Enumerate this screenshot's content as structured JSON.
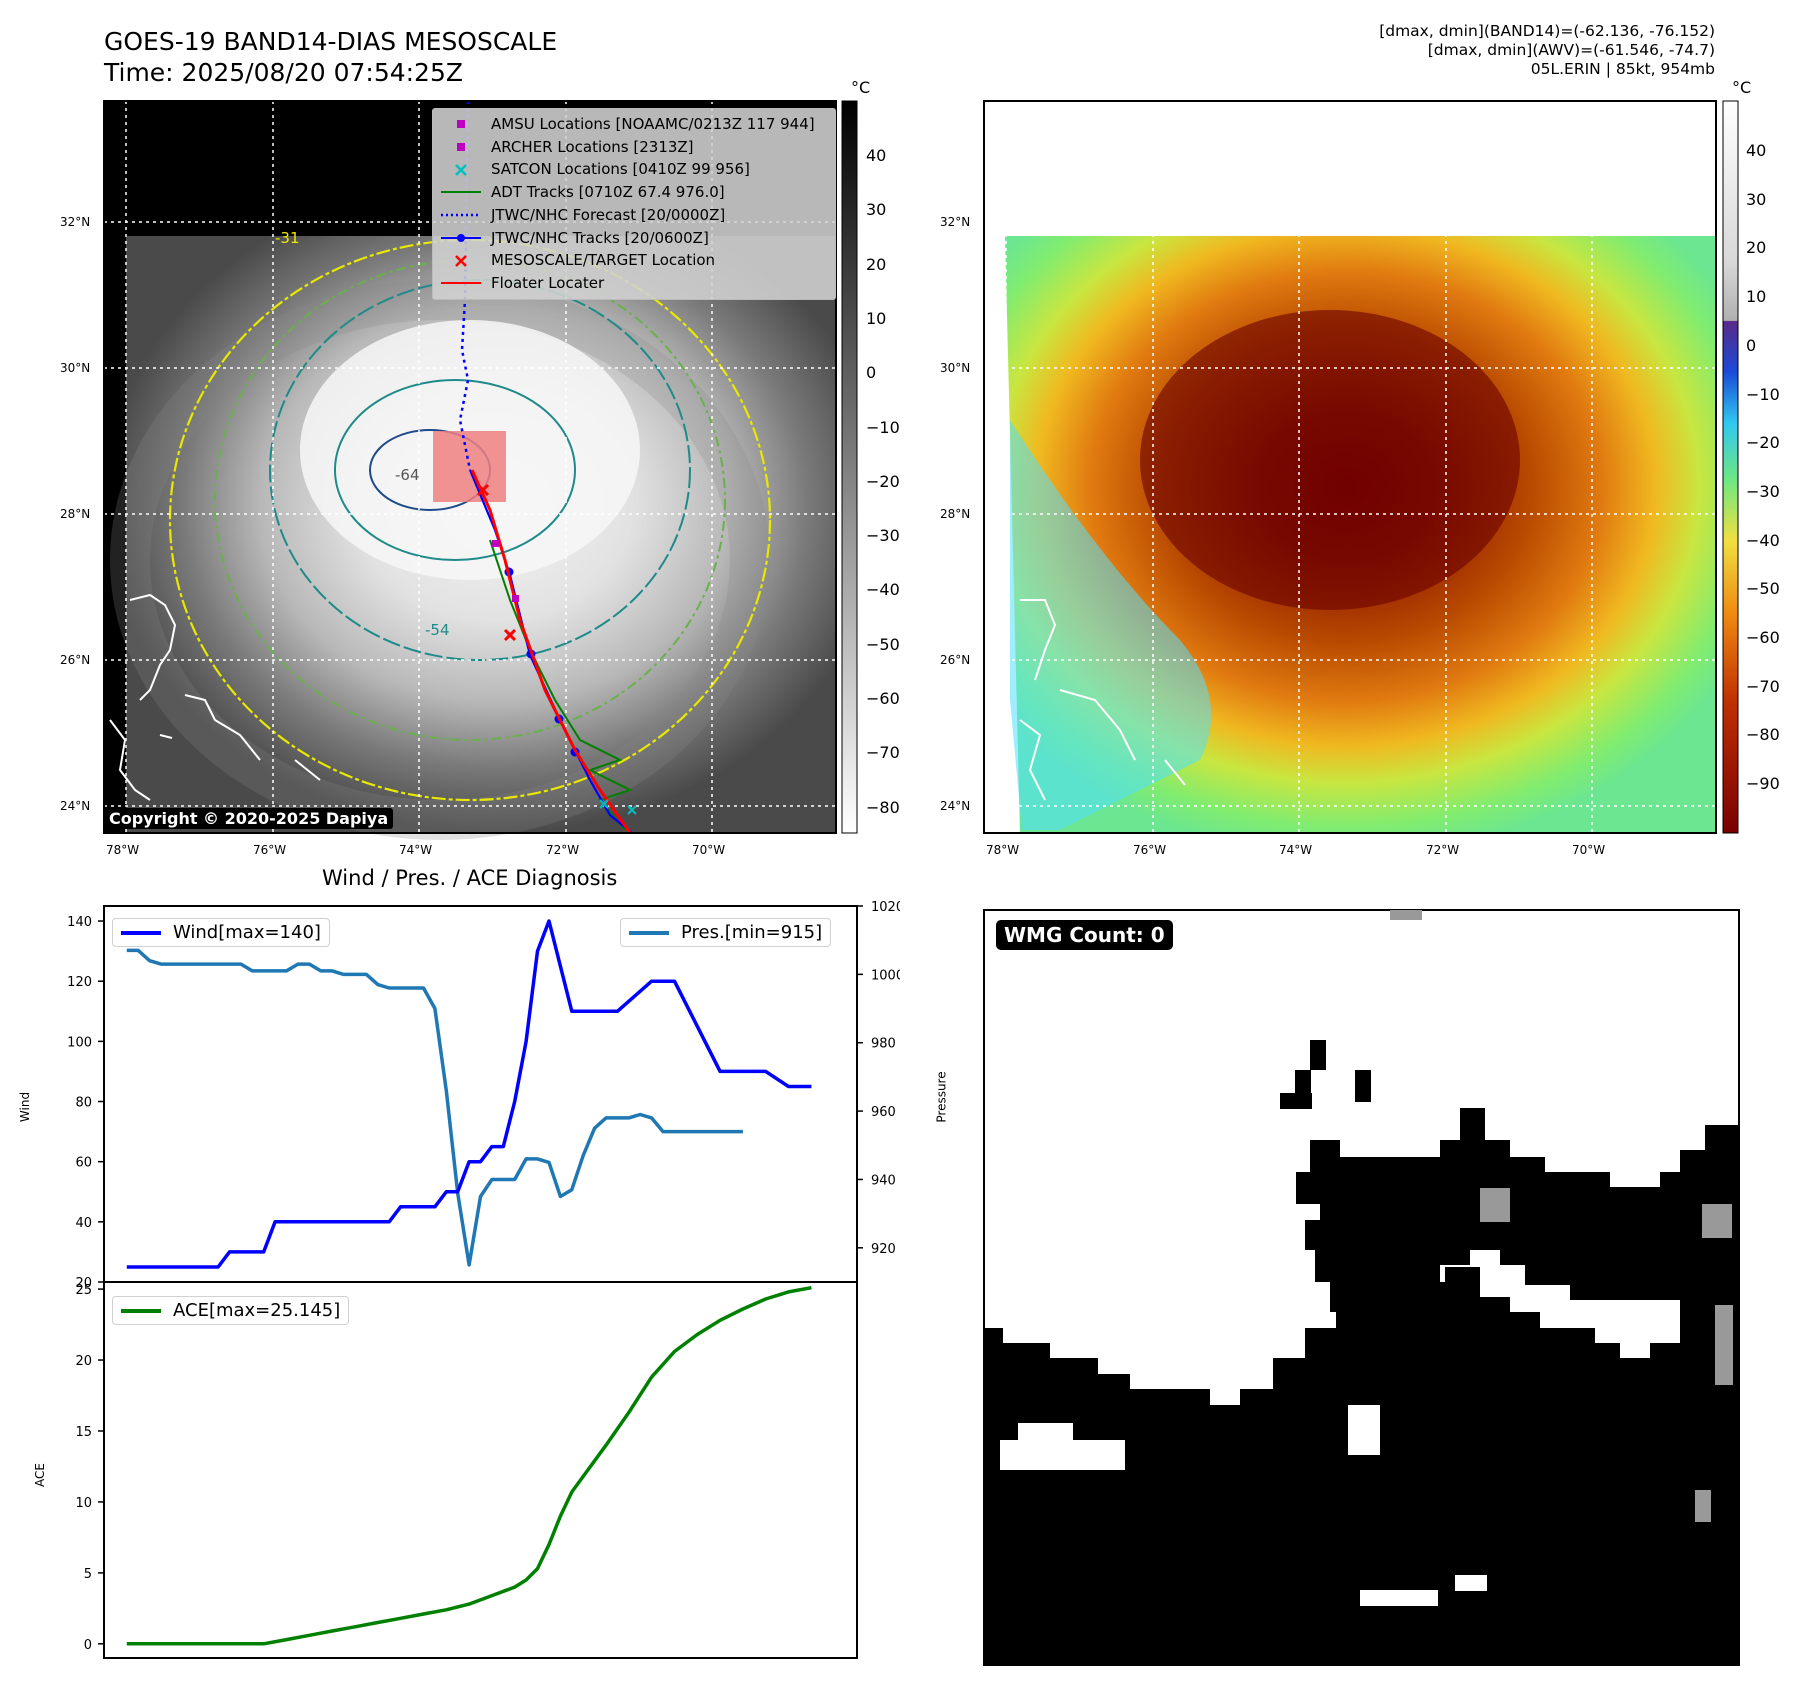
{
  "header": {
    "title_line1": "GOES-19 BAND14-DIAS MESOSCALE",
    "title_line2": "Time: 2025/08/20 07:54:25Z",
    "info_line1": "[dmax, dmin](BAND14)=(-62.136, -76.152)",
    "info_line2": "[dmax, dmin](AWV)=(-61.546, -74.7)",
    "info_line3": "05L.ERIN | 85kt, 954mb"
  },
  "map": {
    "lat_labels": [
      "32°N",
      "30°N",
      "28°N",
      "26°N",
      "24°N"
    ],
    "lon_labels": [
      "78°W",
      "76°W",
      "74°W",
      "72°W",
      "70°W"
    ],
    "copyright": "Copyright © 2020-2025 Dapiya",
    "contour_labels": [
      "-31",
      "-54",
      "-64"
    ]
  },
  "left_colorbar": {
    "unit": "°C",
    "ticks": [
      "40",
      "30",
      "20",
      "10",
      "0",
      "−10",
      "−20",
      "−30",
      "−40",
      "−50",
      "−60",
      "−70",
      "−80"
    ]
  },
  "right_colorbar": {
    "unit": "°C",
    "ticks": [
      "40",
      "30",
      "20",
      "10",
      "0",
      "−10",
      "−20",
      "−30",
      "−40",
      "−50",
      "−60",
      "−70",
      "−80",
      "−90"
    ]
  },
  "map_legend": [
    {
      "label": "AMSU Locations [NOAAMC/0213Z 117 944]",
      "marker": "square",
      "color": "#c000c0"
    },
    {
      "label": "ARCHER Locations [2313Z]",
      "marker": "square",
      "color": "#c000c0"
    },
    {
      "label": "SATCON Locations [0410Z 99 956]",
      "marker": "x",
      "color": "#00c0c0"
    },
    {
      "label": "ADT Tracks [0710Z 67.4 976.0]",
      "marker": "line",
      "color": "#008000"
    },
    {
      "label": "JTWC/NHC Forecast [20/0000Z]",
      "marker": "dotted",
      "color": "#0000ff"
    },
    {
      "label": "JTWC/NHC Tracks [20/0600Z]",
      "marker": "line-dot",
      "color": "#0000ff"
    },
    {
      "label": "MESOSCALE/TARGET Location",
      "marker": "x",
      "color": "#ff0000"
    },
    {
      "label": "Floater Locater",
      "marker": "line",
      "color": "#ff0000"
    }
  ],
  "wmg": {
    "label": "WMG Count: 0"
  },
  "colors": {
    "wind": "#0000ff",
    "pressure": "#1f77b4",
    "ace": "#008000"
  },
  "chart_data": [
    {
      "type": "line",
      "title": "Wind / Pres. / ACE Diagnosis",
      "ylabel": "Wind",
      "ylim": [
        20,
        145
      ],
      "yticks": [
        20,
        40,
        60,
        80,
        100,
        120,
        140
      ],
      "y2label": "Pressure",
      "y2lim": [
        910,
        1020
      ],
      "y2ticks": [
        920,
        940,
        960,
        980,
        1000,
        1020
      ],
      "legend": [
        "Wind[max=140]",
        "Pres.[min=915]"
      ],
      "legend_placement": [
        "top-left",
        "top-right"
      ],
      "x_ticks_shown": false,
      "series": [
        {
          "name": "Wind[max=140]",
          "axis": "left",
          "x": [
            0,
            8,
            9,
            12,
            13,
            20,
            23,
            24,
            25,
            27,
            28,
            29,
            30,
            31,
            32,
            33,
            34,
            35,
            36,
            37,
            38,
            39,
            40,
            42,
            43,
            46,
            48,
            50,
            52,
            53,
            55,
            56,
            58,
            60
          ],
          "y": [
            25,
            25,
            30,
            30,
            40,
            40,
            40,
            45,
            45,
            45,
            50,
            50,
            60,
            60,
            65,
            65,
            80,
            100,
            130,
            140,
            125,
            110,
            110,
            110,
            110,
            120,
            120,
            105,
            90,
            90,
            90,
            90,
            85,
            85
          ]
        },
        {
          "name": "Pres.[min=915]",
          "axis": "right",
          "x": [
            0,
            1,
            2,
            3,
            4,
            5,
            6,
            7,
            8,
            9,
            10,
            11,
            12,
            13,
            14,
            15,
            16,
            17,
            18,
            19,
            20,
            21,
            22,
            23,
            24,
            25,
            26,
            27,
            28,
            29,
            30,
            31,
            32,
            33,
            34,
            35,
            36,
            37,
            38,
            39,
            40,
            41,
            42,
            43,
            44,
            45,
            46,
            47,
            48,
            49,
            50,
            51,
            52,
            53,
            54
          ],
          "y": [
            1007,
            1007,
            1004,
            1003,
            1003,
            1003,
            1003,
            1003,
            1003,
            1003,
            1003,
            1001,
            1001,
            1001,
            1001,
            1003,
            1003,
            1001,
            1001,
            1000,
            1000,
            1000,
            997,
            996,
            996,
            996,
            996,
            990,
            966,
            936,
            915,
            935,
            940,
            940,
            940,
            946,
            946,
            945,
            935,
            937,
            947,
            955,
            958,
            958,
            958,
            959,
            958,
            954,
            954,
            954,
            954,
            954,
            954,
            954,
            954
          ]
        }
      ]
    },
    {
      "type": "line",
      "ylabel": "ACE",
      "ylim": [
        -1,
        25.5
      ],
      "yticks": [
        0,
        5,
        10,
        15,
        20,
        25
      ],
      "legend": [
        "ACE[max=25.145]"
      ],
      "legend_placement": "top-left",
      "x_ticks_shown": false,
      "series": [
        {
          "name": "ACE[max=25.145]",
          "x": [
            0,
            12,
            14,
            16,
            18,
            20,
            22,
            24,
            26,
            28,
            30,
            32,
            34,
            35,
            36,
            37,
            38,
            39,
            40,
            42,
            44,
            46,
            48,
            50,
            52,
            54,
            56,
            58,
            60
          ],
          "y": [
            0,
            0,
            0.3,
            0.6,
            0.9,
            1.2,
            1.5,
            1.8,
            2.1,
            2.4,
            2.8,
            3.4,
            4.0,
            4.5,
            5.3,
            7.0,
            9.0,
            10.7,
            11.8,
            14.0,
            16.3,
            18.8,
            20.6,
            21.8,
            22.8,
            23.6,
            24.3,
            24.8,
            25.1
          ]
        }
      ]
    }
  ]
}
